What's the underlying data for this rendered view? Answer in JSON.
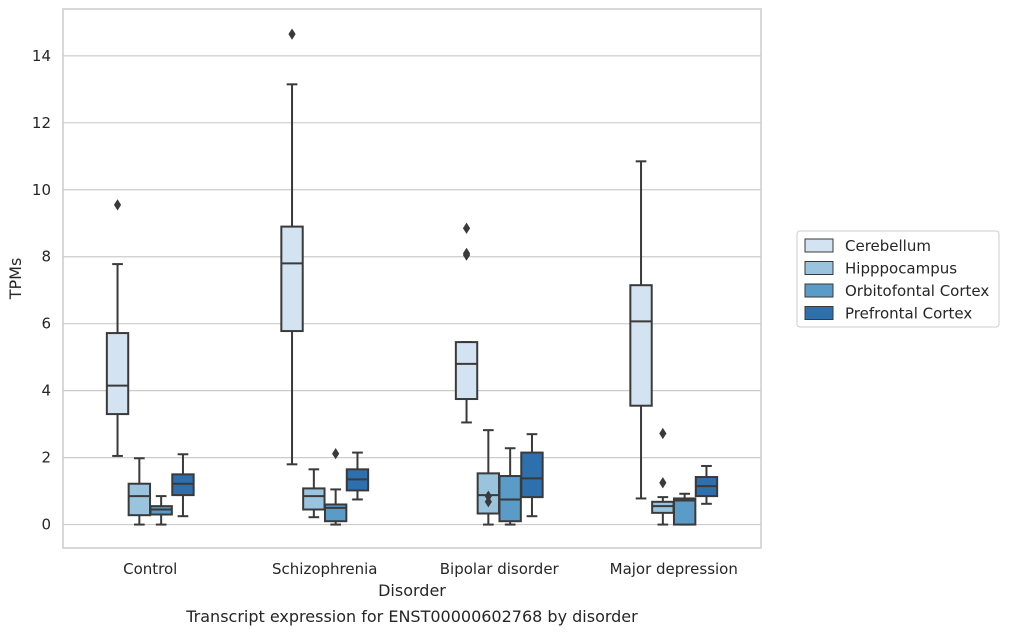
{
  "chart_data": {
    "type": "box",
    "title": "",
    "caption": "Transcript expression for ENST00000602768 by disorder",
    "xlabel": "Disorder",
    "ylabel": "TPMs",
    "ylim": [
      -0.7,
      15.4
    ],
    "yticks": [
      0,
      2,
      4,
      6,
      8,
      10,
      12,
      14
    ],
    "grid": true,
    "legend_position": "right",
    "categories": [
      "Control",
      "Schizophrenia",
      "Bipolar disorder",
      "Major depression"
    ],
    "series": [
      {
        "name": "Cerebellum",
        "color": "#d4e3f2",
        "boxes": [
          {
            "whisker_low": 2.05,
            "q1": 3.3,
            "median": 4.15,
            "q3": 5.72,
            "whisker_high": 7.78,
            "outliers": [
              9.55
            ]
          },
          {
            "whisker_low": 1.8,
            "q1": 5.78,
            "median": 7.8,
            "q3": 8.9,
            "whisker_high": 13.15,
            "outliers": [
              14.65
            ]
          },
          {
            "whisker_low": 3.05,
            "q1": 3.75,
            "median": 4.8,
            "q3": 5.45,
            "whisker_high": 5.45,
            "outliers": [
              8.05,
              8.1,
              8.85
            ]
          },
          {
            "whisker_low": 0.78,
            "q1": 3.55,
            "median": 6.07,
            "q3": 7.15,
            "whisker_high": 10.85,
            "outliers": []
          }
        ]
      },
      {
        "name": "Hipppocampus",
        "color": "#9ac4de",
        "boxes": [
          {
            "whisker_low": 0.0,
            "q1": 0.28,
            "median": 0.85,
            "q3": 1.22,
            "whisker_high": 1.98,
            "outliers": []
          },
          {
            "whisker_low": 0.22,
            "q1": 0.45,
            "median": 0.85,
            "q3": 1.08,
            "whisker_high": 1.65,
            "outliers": []
          },
          {
            "whisker_low": 0.0,
            "q1": 0.33,
            "median": 0.88,
            "q3": 1.53,
            "whisker_high": 2.82,
            "outliers": [
              0.68,
              0.85
            ]
          },
          {
            "whisker_low": 0.0,
            "q1": 0.35,
            "median": 0.55,
            "q3": 0.68,
            "whisker_high": 0.82,
            "outliers": [
              1.25,
              2.72
            ]
          }
        ]
      },
      {
        "name": "Orbitofontal Cortex",
        "color": "#5a9bc8",
        "boxes": [
          {
            "whisker_low": 0.0,
            "q1": 0.3,
            "median": 0.45,
            "q3": 0.55,
            "whisker_high": 0.85,
            "outliers": []
          },
          {
            "whisker_low": 0.0,
            "q1": 0.1,
            "median": 0.5,
            "q3": 0.6,
            "whisker_high": 1.05,
            "outliers": [
              2.12
            ]
          },
          {
            "whisker_low": 0.0,
            "q1": 0.1,
            "median": 0.75,
            "q3": 1.45,
            "whisker_high": 2.28,
            "outliers": []
          },
          {
            "whisker_low": 0.0,
            "q1": 0.0,
            "median": 0.72,
            "q3": 0.78,
            "whisker_high": 0.92,
            "outliers": []
          }
        ]
      },
      {
        "name": "Prefrontal Cortex",
        "color": "#2e6fae",
        "boxes": [
          {
            "whisker_low": 0.25,
            "q1": 0.88,
            "median": 1.22,
            "q3": 1.5,
            "whisker_high": 2.1,
            "outliers": []
          },
          {
            "whisker_low": 0.75,
            "q1": 1.02,
            "median": 1.35,
            "q3": 1.65,
            "whisker_high": 2.15,
            "outliers": []
          },
          {
            "whisker_low": 0.25,
            "q1": 0.82,
            "median": 1.38,
            "q3": 2.15,
            "whisker_high": 2.7,
            "outliers": []
          },
          {
            "whisker_low": 0.62,
            "q1": 0.85,
            "median": 1.15,
            "q3": 1.42,
            "whisker_high": 1.75,
            "outliers": []
          }
        ]
      }
    ]
  }
}
